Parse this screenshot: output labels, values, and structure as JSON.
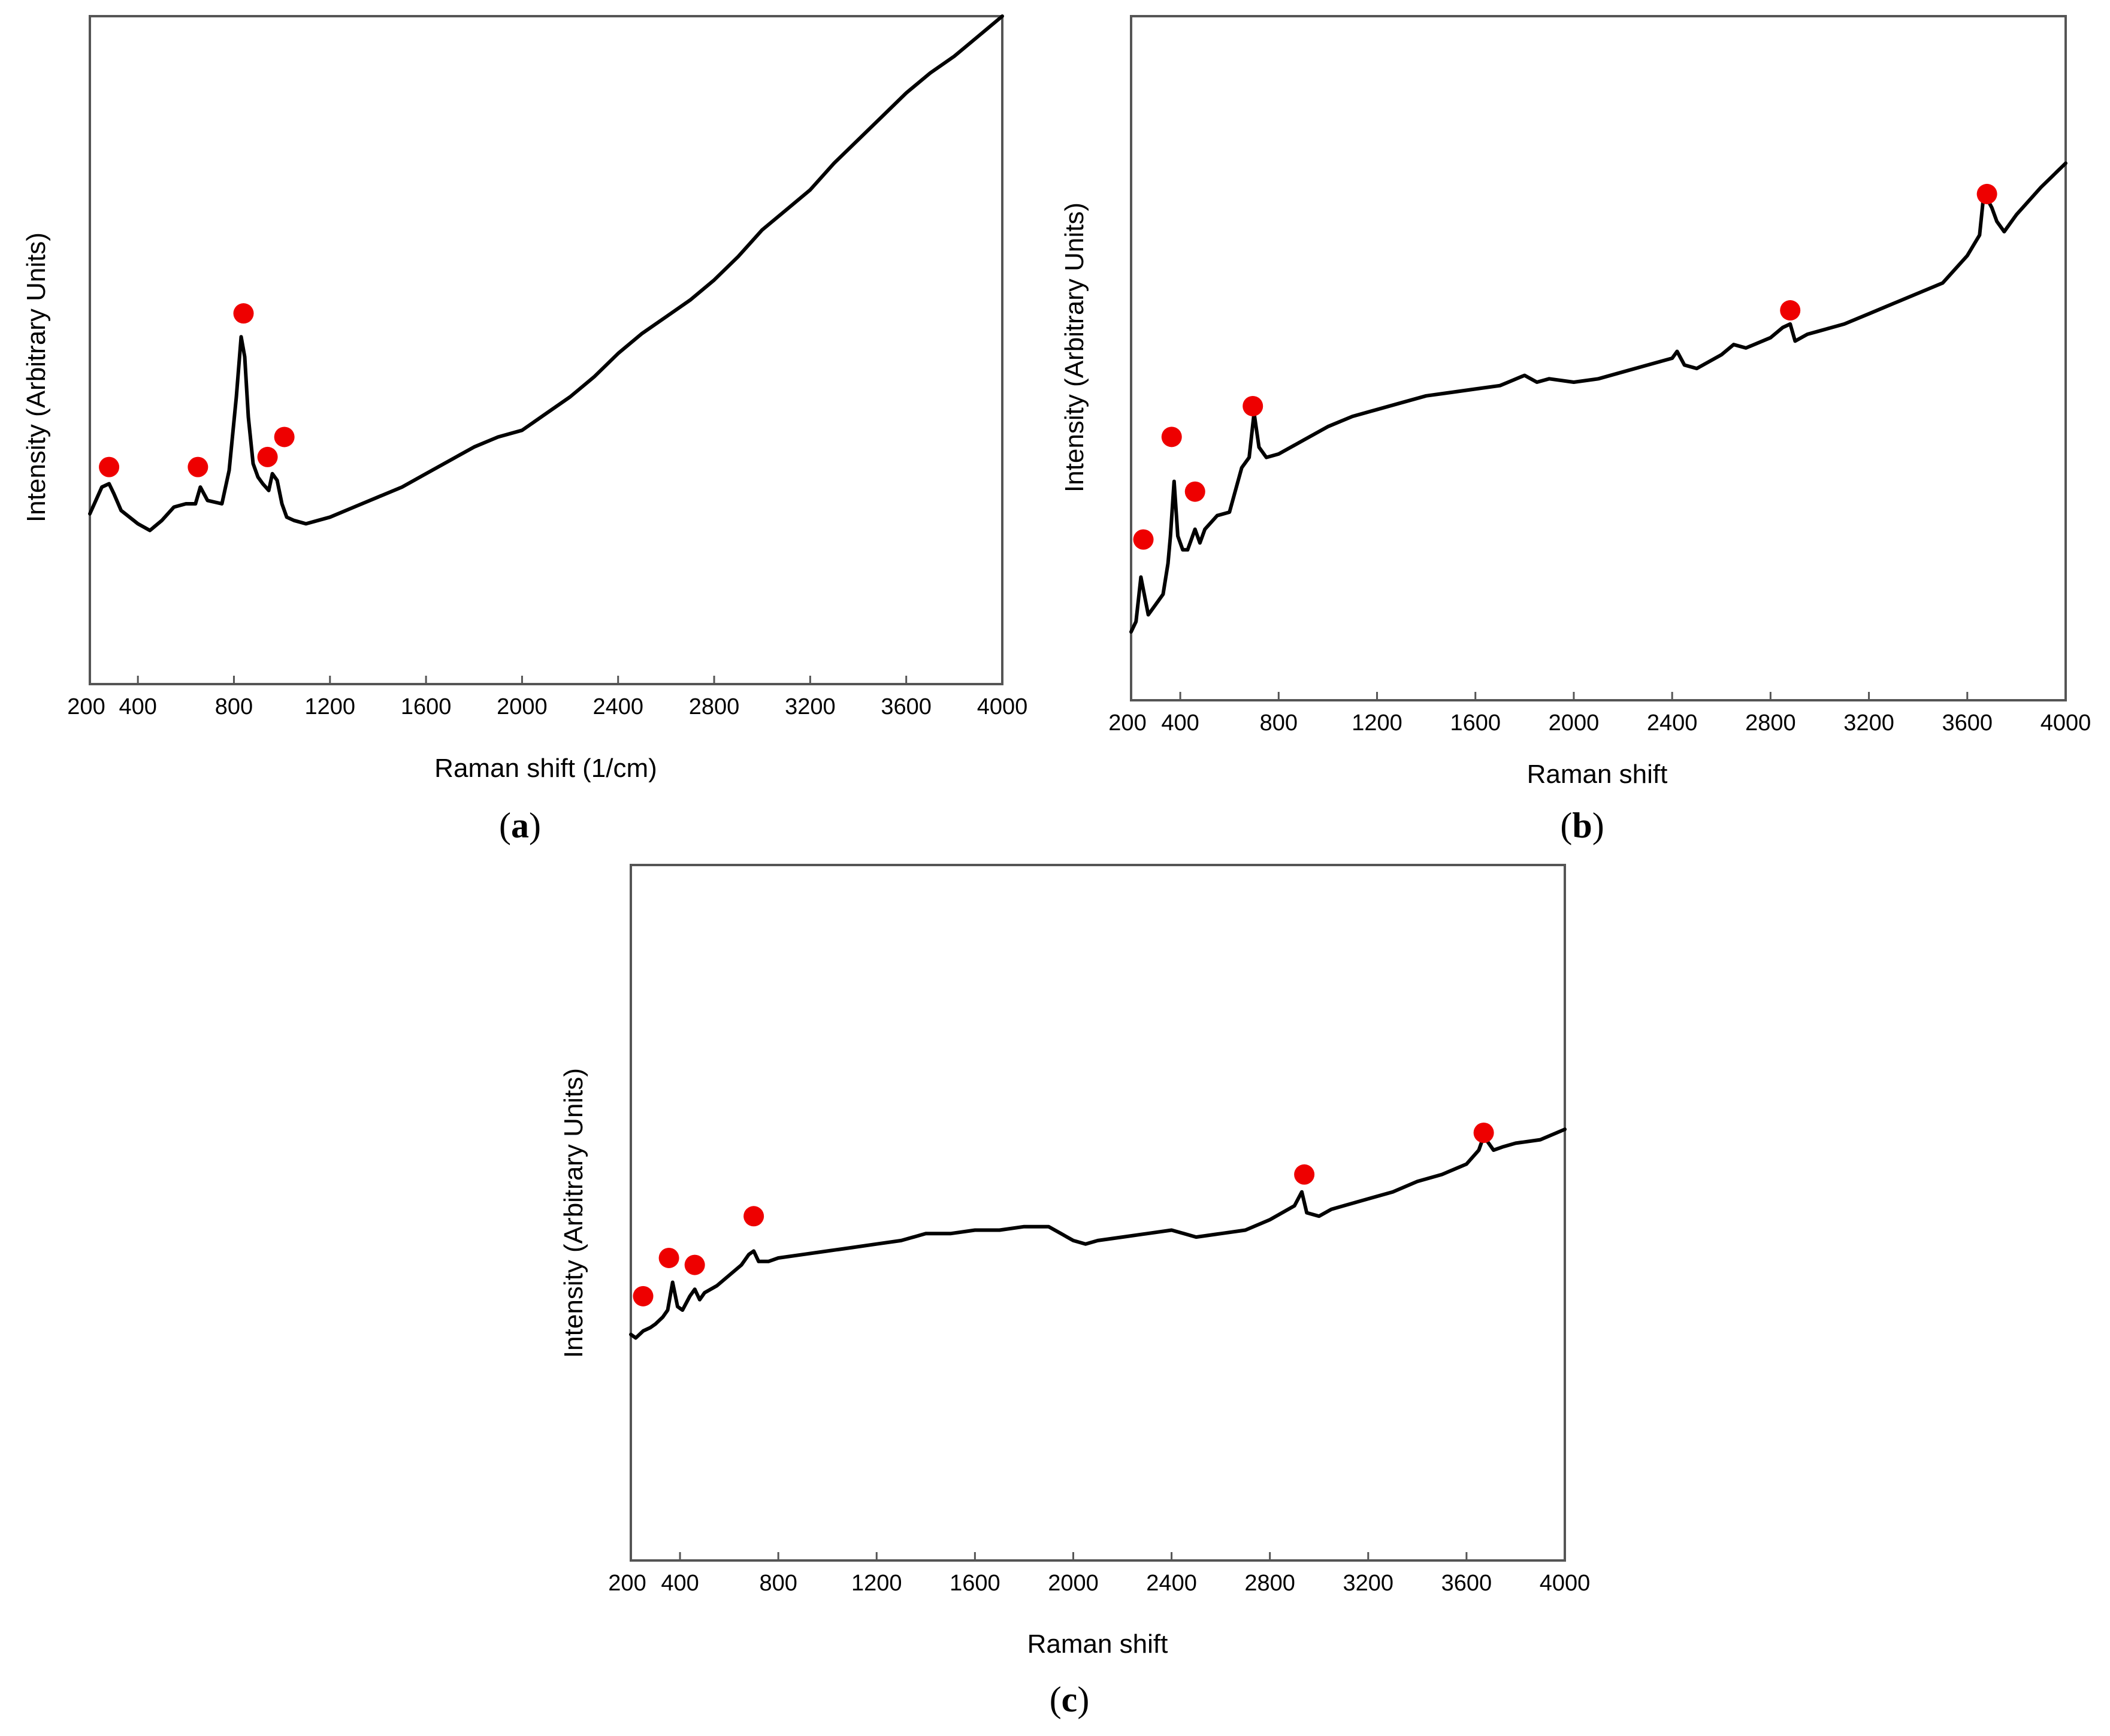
{
  "colors": {
    "marker": "#ee0000",
    "line": "#000000",
    "frame": "#555555"
  },
  "chart_data": [
    {
      "id": "a",
      "type": "line",
      "caption_letter": "a",
      "xlabel": "Raman shift (1/cm)",
      "ylabel": "Intensity (Arbitrary Units)",
      "xlim": [
        200,
        4000
      ],
      "ylim": [
        0,
        100
      ],
      "xticks": [
        200,
        400,
        800,
        1200,
        1600,
        2000,
        2400,
        2800,
        3200,
        3600,
        4000
      ],
      "x": [
        200,
        250,
        280,
        300,
        330,
        400,
        450,
        500,
        550,
        600,
        640,
        660,
        690,
        750,
        780,
        810,
        830,
        845,
        860,
        880,
        900,
        920,
        945,
        960,
        980,
        1000,
        1020,
        1050,
        1100,
        1150,
        1200,
        1300,
        1400,
        1500,
        1600,
        1700,
        1800,
        1900,
        2000,
        2100,
        2200,
        2300,
        2400,
        2500,
        2600,
        2700,
        2800,
        2900,
        3000,
        3100,
        3200,
        3300,
        3400,
        3500,
        3600,
        3700,
        3800,
        3900,
        4000
      ],
      "values": [
        25.5,
        29.5,
        30,
        28.5,
        26,
        24,
        23,
        24.5,
        26.5,
        27,
        27,
        29.5,
        27.5,
        27,
        32,
        43,
        52,
        49,
        40,
        33,
        31,
        30,
        29,
        31.5,
        30.5,
        27,
        25,
        24.5,
        24,
        24.5,
        25,
        26.5,
        28,
        29.5,
        31.5,
        33.5,
        35.5,
        37,
        38,
        40.5,
        43,
        46,
        49.5,
        52.5,
        55,
        57.5,
        60.5,
        64,
        68,
        71,
        74,
        78,
        81.5,
        85,
        88.5,
        91.5,
        94,
        97,
        100
      ],
      "markers": [
        {
          "x": 280,
          "y": 32.5
        },
        {
          "x": 650,
          "y": 32.5
        },
        {
          "x": 840,
          "y": 55.5
        },
        {
          "x": 940,
          "y": 34
        },
        {
          "x": 1010,
          "y": 37
        }
      ]
    },
    {
      "id": "b",
      "type": "line",
      "caption_letter": "b",
      "xlabel": "Raman shift",
      "ylabel": "Intensity (Arbitrary Units)",
      "xlim": [
        200,
        4000
      ],
      "ylim": [
        0,
        100
      ],
      "xticks": [
        200,
        400,
        800,
        1200,
        1600,
        2000,
        2400,
        2800,
        3200,
        3600,
        4000
      ],
      "x": [
        200,
        220,
        240,
        270,
        300,
        330,
        350,
        360,
        375,
        390,
        410,
        430,
        460,
        480,
        500,
        550,
        600,
        650,
        680,
        700,
        720,
        750,
        800,
        900,
        1000,
        1100,
        1200,
        1300,
        1400,
        1500,
        1600,
        1700,
        1800,
        1850,
        1900,
        2000,
        2100,
        2200,
        2300,
        2400,
        2420,
        2450,
        2500,
        2600,
        2650,
        2700,
        2800,
        2850,
        2880,
        2900,
        2950,
        3000,
        3100,
        3200,
        3300,
        3400,
        3500,
        3600,
        3650,
        3670,
        3685,
        3700,
        3720,
        3750,
        3800,
        3900,
        4000
      ],
      "values": [
        10,
        11.5,
        18,
        12.5,
        14,
        15.5,
        20,
        24,
        32,
        24,
        22,
        22,
        25,
        23,
        25,
        27,
        27.5,
        34,
        35.5,
        42,
        37,
        35.5,
        36,
        38,
        40,
        41.5,
        42.5,
        43.5,
        44.5,
        45,
        45.5,
        46,
        47.5,
        46.5,
        47,
        46.5,
        47,
        48,
        49,
        50,
        51,
        49,
        48.5,
        50.5,
        52,
        51.5,
        53,
        54.5,
        55,
        52.5,
        53.5,
        54,
        55,
        56.5,
        58,
        59.5,
        61,
        65,
        68,
        75,
        73,
        72,
        70,
        68.5,
        71,
        75,
        78.5
      ],
      "markers": [
        {
          "x": 250,
          "y": 23.5
        },
        {
          "x": 365,
          "y": 38.5
        },
        {
          "x": 460,
          "y": 30.5
        },
        {
          "x": 695,
          "y": 43
        },
        {
          "x": 2880,
          "y": 57
        },
        {
          "x": 3680,
          "y": 74
        }
      ]
    },
    {
      "id": "c",
      "type": "line",
      "caption_letter": "c",
      "xlabel": "Raman shift",
      "ylabel": "Intensity (Arbitrary Units)",
      "xlim": [
        200,
        4000
      ],
      "ylim": [
        0,
        100
      ],
      "xticks": [
        200,
        400,
        800,
        1200,
        1600,
        2000,
        2400,
        2800,
        3200,
        3600,
        4000
      ],
      "x": [
        200,
        220,
        250,
        280,
        300,
        330,
        350,
        370,
        390,
        410,
        440,
        460,
        480,
        500,
        550,
        600,
        650,
        680,
        700,
        720,
        760,
        800,
        900,
        1000,
        1100,
        1200,
        1300,
        1400,
        1500,
        1600,
        1700,
        1800,
        1900,
        1950,
        2000,
        2050,
        2100,
        2200,
        2300,
        2400,
        2450,
        2500,
        2600,
        2700,
        2800,
        2900,
        2930,
        2950,
        3000,
        3050,
        3100,
        3200,
        3300,
        3400,
        3500,
        3600,
        3650,
        3670,
        3690,
        3710,
        3750,
        3800,
        3900,
        4000
      ],
      "values": [
        32.5,
        32,
        33,
        33.5,
        34,
        35,
        36,
        40,
        36.5,
        36,
        38,
        39,
        37.5,
        38.5,
        39.5,
        41,
        42.5,
        44,
        44.5,
        43,
        43,
        43.5,
        44,
        44.5,
        45,
        45.5,
        46,
        47,
        47,
        47.5,
        47.5,
        48,
        48,
        47,
        46,
        45.5,
        46,
        46.5,
        47,
        47.5,
        47,
        46.5,
        47,
        47.5,
        49,
        51,
        53,
        50,
        49.5,
        50.5,
        51,
        52,
        53,
        54.5,
        55.5,
        57,
        59,
        61,
        60,
        59,
        59.5,
        60,
        60.5,
        62
      ],
      "markers": [
        {
          "x": 250,
          "y": 38
        },
        {
          "x": 355,
          "y": 43.5
        },
        {
          "x": 460,
          "y": 42.5
        },
        {
          "x": 700,
          "y": 49.5
        },
        {
          "x": 2940,
          "y": 55.5
        },
        {
          "x": 3670,
          "y": 61.5
        }
      ]
    }
  ]
}
